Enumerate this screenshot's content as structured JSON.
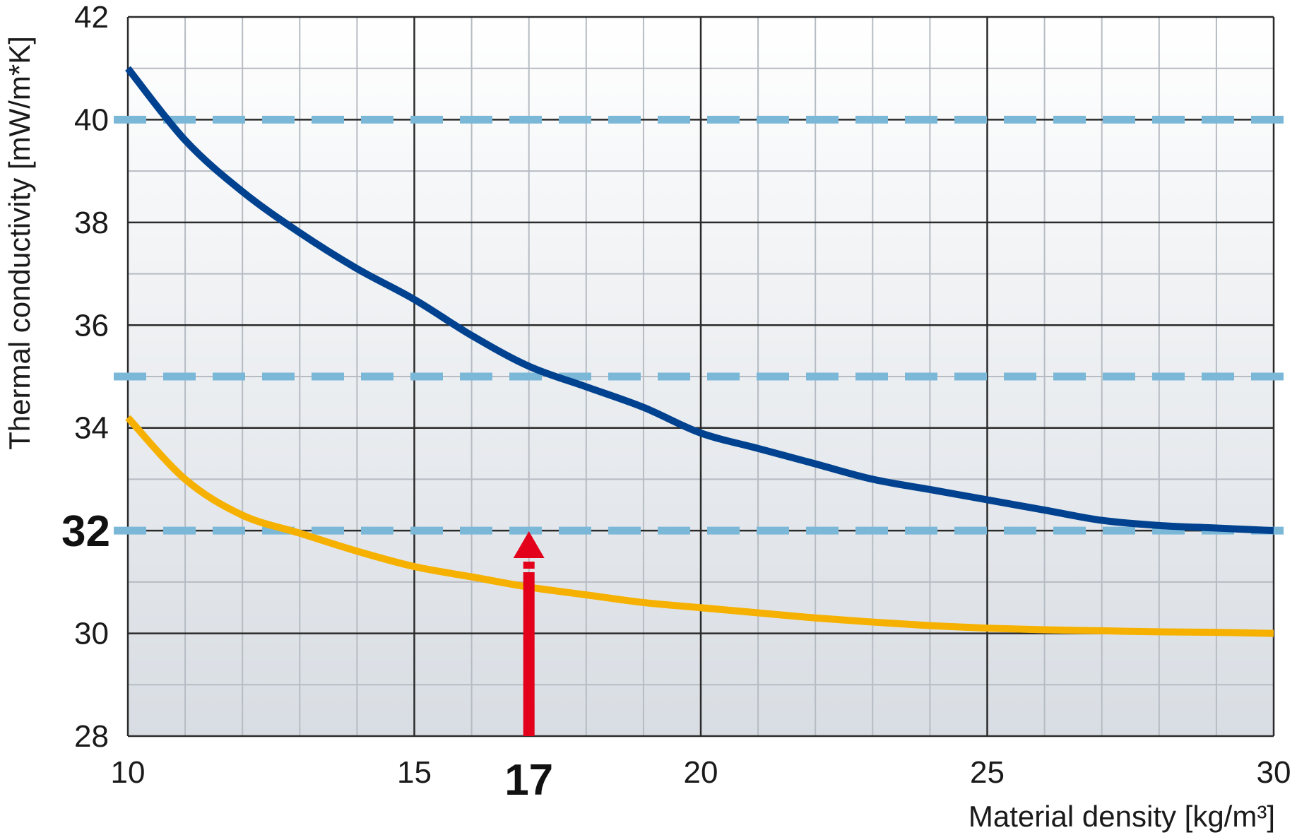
{
  "chart_data": {
    "type": "line",
    "title": "",
    "xlabel": "Material density [kg/m³]",
    "ylabel": "Thermal conductivity  [mW/m*K]",
    "xlim": [
      10,
      30
    ],
    "ylim": [
      28,
      42
    ],
    "x_ticks": [
      10,
      15,
      20,
      25,
      30
    ],
    "y_ticks": [
      28,
      30,
      34,
      36,
      38,
      40,
      42
    ],
    "x_minor_step": 1,
    "y_minor_step": 1,
    "grid": true,
    "series": [
      {
        "color": "#00428f",
        "x": [
          10,
          11,
          12,
          13,
          14,
          15,
          16,
          17,
          18,
          19,
          20,
          21,
          22,
          23,
          24,
          25,
          26,
          27,
          28,
          29,
          30
        ],
        "values": [
          41.0,
          39.6,
          38.6,
          37.8,
          37.1,
          36.5,
          35.8,
          35.2,
          34.8,
          34.4,
          33.9,
          33.6,
          33.3,
          33.0,
          32.8,
          32.6,
          32.4,
          32.2,
          32.1,
          32.05,
          32.0
        ]
      },
      {
        "color": "#f6b100",
        "x": [
          10,
          11,
          12,
          13,
          14,
          15,
          16,
          17,
          18,
          19,
          20,
          21,
          22,
          23,
          24,
          25,
          26,
          27,
          28,
          29,
          30
        ],
        "values": [
          34.2,
          33.0,
          32.3,
          31.95,
          31.6,
          31.3,
          31.1,
          30.9,
          30.75,
          30.6,
          30.5,
          30.4,
          30.3,
          30.22,
          30.15,
          30.1,
          30.07,
          30.05,
          30.03,
          30.02,
          30.0
        ]
      }
    ],
    "reference_lines": [
      {
        "y": 40,
        "color": "#7bb8d8",
        "style": "dashed"
      },
      {
        "y": 35,
        "color": "#7bb8d8",
        "style": "dashed"
      },
      {
        "y": 32,
        "color": "#7bb8d8",
        "style": "dashed"
      }
    ],
    "highlight_x": {
      "value": 17,
      "label": "17",
      "color": "#e3001b"
    },
    "highlight_y": {
      "value": 32,
      "label": "32"
    },
    "colors": {
      "background_top": "#ffffff",
      "background_bottom": "#d8dde3",
      "major_grid": "#2a2a2a",
      "minor_grid": "#b6bcc3"
    }
  }
}
